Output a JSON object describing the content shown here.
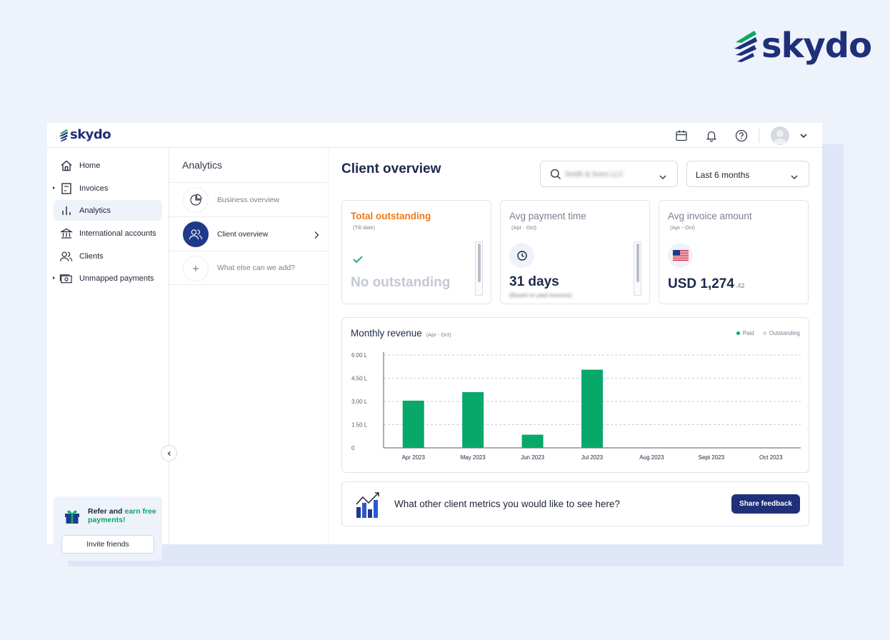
{
  "brand": {
    "name": "skydo"
  },
  "sidebar": {
    "items": [
      {
        "label": "Home",
        "icon": "home-icon"
      },
      {
        "label": "Invoices",
        "icon": "invoice-icon"
      },
      {
        "label": "Analytics",
        "icon": "analytics-icon"
      },
      {
        "label": "International accounts",
        "icon": "bank-icon"
      },
      {
        "label": "Clients",
        "icon": "users-icon"
      },
      {
        "label": "Unmapped payments",
        "icon": "cash-icon"
      }
    ],
    "active": "Analytics",
    "refer": {
      "text_prefix": "Refer and ",
      "text_highlight": "earn free payments!",
      "invite_label": "Invite friends"
    }
  },
  "analytics_panel": {
    "title": "Analytics",
    "items": [
      {
        "label": "Business overview"
      },
      {
        "label": "Client overview"
      },
      {
        "label": "What else can we add?"
      }
    ]
  },
  "main": {
    "title": "Client overview",
    "client_filter": {
      "value": "Smith & Sons LLC"
    },
    "period_filter": {
      "value": "Last 6 months"
    },
    "kpis": {
      "outstanding": {
        "title": "Total outstanding",
        "subtitle": "(Till date)",
        "value": "No outstanding"
      },
      "payment_time": {
        "title": "Avg payment time",
        "subtitle": "(Apr - Oct)",
        "value": "31 days",
        "note": "(Based on paid invoices)"
      },
      "invoice_amount": {
        "title": "Avg invoice amount",
        "subtitle": "(Apr - Oct)",
        "value": "USD 1,274",
        "decimals": ".42"
      }
    },
    "revenue": {
      "title": "Monthly revenue",
      "range": "(Apr - Oct)",
      "legend": {
        "paid": "Paid",
        "outstanding": "Outstanding"
      }
    },
    "feedback": {
      "question": "What other client metrics you would like to see here?",
      "button_label": "Share feedback"
    }
  },
  "colors": {
    "primary": "#1f2f7a",
    "accent_green": "#08a86a",
    "orange": "#f07a16",
    "muted": "#7a8090"
  },
  "chart_data": {
    "type": "bar",
    "title": "Monthly revenue",
    "categories": [
      "Apr 2023",
      "May 2023",
      "Jun 2023",
      "Jul 2023",
      "Aug 2023",
      "Sept 2023",
      "Oct 2023"
    ],
    "series": [
      {
        "name": "Paid",
        "values": [
          3.05,
          3.6,
          0.85,
          5.05,
          0,
          0,
          0
        ]
      },
      {
        "name": "Outstanding",
        "values": [
          0,
          0,
          0,
          0,
          0,
          0,
          0
        ]
      }
    ],
    "ylim": [
      0,
      6
    ],
    "y_ticks": [
      0,
      1.5,
      3.0,
      4.5,
      6.0
    ],
    "y_tick_labels": [
      "0",
      "1.50 L",
      "3.00 L",
      "4.50 L",
      "6.00 L"
    ],
    "grid": true,
    "legend_position": "top-right"
  }
}
